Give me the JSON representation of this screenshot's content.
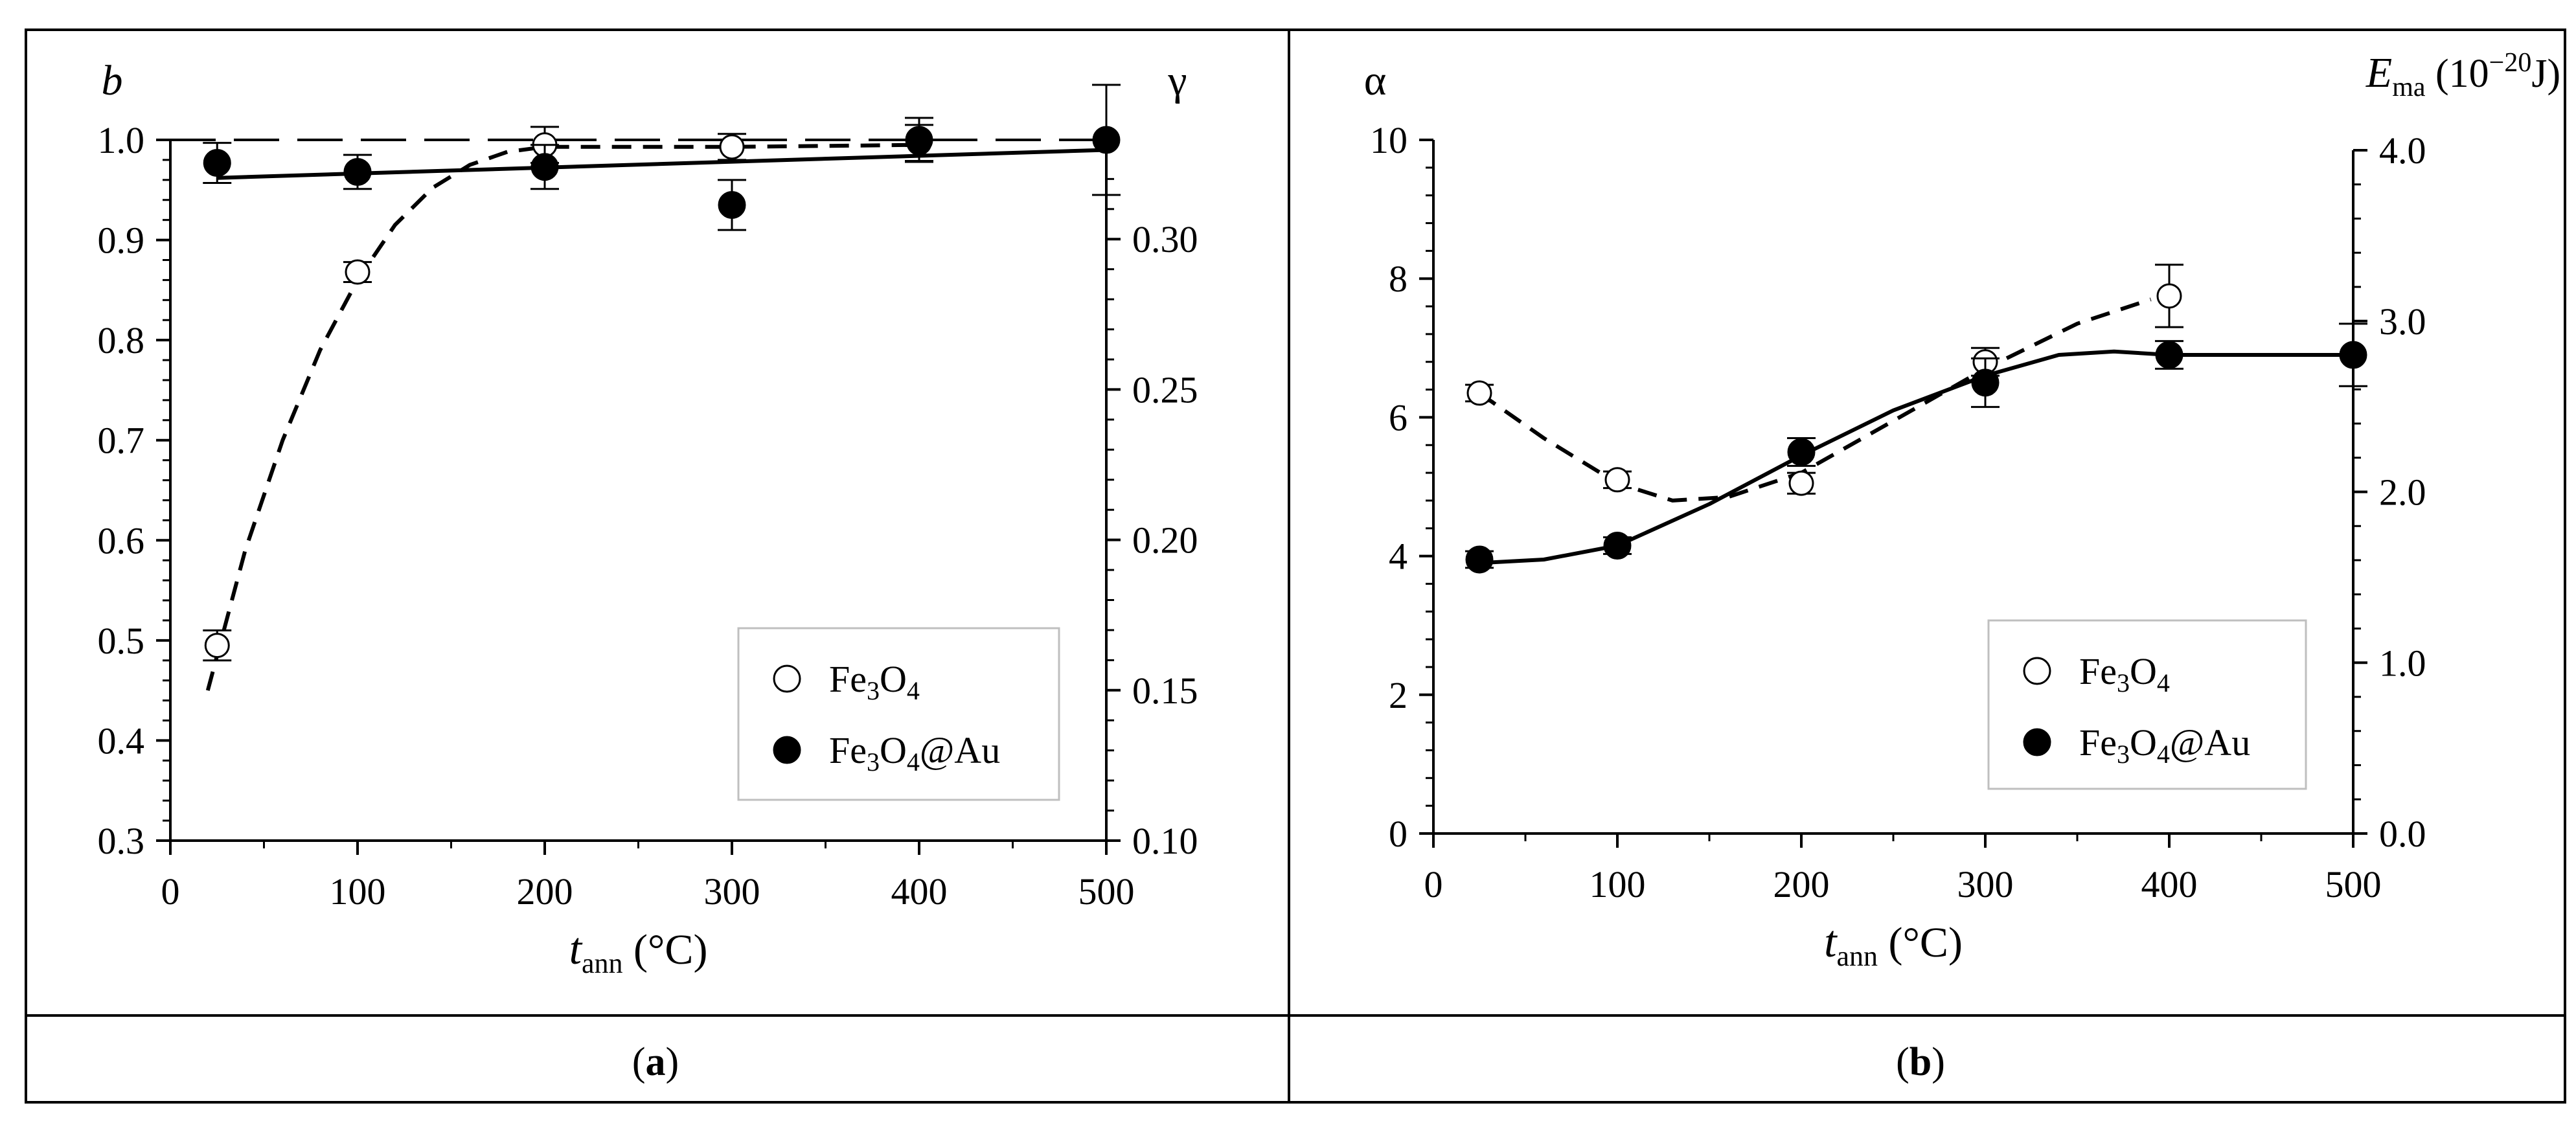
{
  "colors": {
    "ink": "#000000",
    "legend_border": "#bfbfbf",
    "background": "#ffffff"
  },
  "panel_labels": {
    "a": "a",
    "b": "b"
  },
  "chart_data": [
    {
      "id": "a",
      "type": "scatter",
      "title": "",
      "xlabel": {
        "var": "t",
        "sub": "ann",
        "unit": " (°C)"
      },
      "ylabel_left": "b",
      "ylabel_right": "γ",
      "xlim": [
        0,
        500
      ],
      "ylim_left": [
        0.3,
        1.0
      ],
      "ylim_right": [
        0.1,
        0.333
      ],
      "xticks": [
        0,
        100,
        200,
        300,
        400,
        500
      ],
      "xtick_labels": [
        "0",
        "100",
        "200",
        "300",
        "400",
        "500"
      ],
      "yticks_left": [
        0.3,
        0.4,
        0.5,
        0.6,
        0.7,
        0.8,
        0.9,
        1.0
      ],
      "ytick_labels_left": [
        "0.3",
        "0.4",
        "0.5",
        "0.6",
        "0.7",
        "0.8",
        "0.9",
        "1.0"
      ],
      "yticks_right": [
        0.1,
        0.15,
        0.2,
        0.25,
        0.3
      ],
      "ytick_labels_right": [
        "0.10",
        "0.15",
        "0.20",
        "0.25",
        "0.30"
      ],
      "reference_line": {
        "y": 1.0,
        "style": "long-dash"
      },
      "series": [
        {
          "name": "Fe3O4",
          "legend_html": "Fe<sub>3</sub>O<sub>4</sub>",
          "marker": "open-circle",
          "fit": "dashed",
          "x": [
            25,
            100,
            200,
            300,
            400
          ],
          "y": [
            0.495,
            0.868,
            0.995,
            0.993,
            0.997
          ],
          "err": [
            0.015,
            0.01,
            0.018,
            0.013,
            0.018
          ]
        },
        {
          "name": "Fe3O4@Au",
          "legend_html": "Fe<sub>3</sub>O<sub>4</sub>@Au",
          "marker": "filled-circle",
          "fit": "solid",
          "x": [
            25,
            100,
            200,
            300,
            400,
            500
          ],
          "y": [
            0.977,
            0.968,
            0.973,
            0.935,
            1.0,
            1.0
          ],
          "err": [
            0.02,
            0.017,
            0.022,
            0.025,
            0.022,
            0.055
          ]
        }
      ],
      "fit_curves": {
        "Fe3O4": {
          "x": [
            20,
            40,
            60,
            80,
            100,
            120,
            140,
            160,
            180,
            200,
            250,
            300,
            350,
            400
          ],
          "y": [
            0.45,
            0.59,
            0.7,
            0.79,
            0.86,
            0.915,
            0.952,
            0.975,
            0.988,
            0.993,
            0.993,
            0.993,
            0.994,
            0.995
          ]
        },
        "Fe3O4@Au": {
          "x": [
            25,
            500
          ],
          "y": [
            0.962,
            0.99
          ]
        }
      },
      "legend": {
        "position": "bottom-right"
      }
    },
    {
      "id": "b",
      "type": "scatter",
      "title": "",
      "xlabel": {
        "var": "t",
        "sub": "ann",
        "unit": " (°C)"
      },
      "ylabel_left": "α",
      "ylabel_right": {
        "var": "E",
        "sub": "ma",
        "unit_html": " (10<sup>−20</sup>J)"
      },
      "xlim": [
        0,
        500
      ],
      "ylim_left": [
        0,
        10
      ],
      "ylim_right": [
        0,
        4.0
      ],
      "xticks": [
        0,
        100,
        200,
        300,
        400,
        500
      ],
      "xtick_labels": [
        "0",
        "100",
        "200",
        "300",
        "400",
        "500"
      ],
      "yticks_left": [
        0,
        2,
        4,
        6,
        8,
        10
      ],
      "ytick_labels_left": [
        "0",
        "2",
        "4",
        "6",
        "8",
        "10"
      ],
      "yticks_right": [
        0.0,
        1.0,
        2.0,
        3.0,
        4.0
      ],
      "ytick_labels_right": [
        "0.0",
        "1.0",
        "2.0",
        "3.0",
        "4.0"
      ],
      "series": [
        {
          "name": "Fe3O4",
          "legend_html": "Fe<sub>3</sub>O<sub>4</sub>",
          "marker": "open-circle",
          "fit": "dashed",
          "x": [
            25,
            100,
            200,
            300,
            400
          ],
          "y": [
            6.35,
            5.1,
            5.05,
            6.8,
            7.75
          ],
          "err": [
            0.12,
            0.12,
            0.15,
            0.2,
            0.45
          ]
        },
        {
          "name": "Fe3O4@Au",
          "legend_html": "Fe<sub>3</sub>O<sub>4</sub>@Au",
          "marker": "filled-circle",
          "fit": "solid",
          "x": [
            25,
            100,
            200,
            300,
            400,
            500
          ],
          "y": [
            3.95,
            4.15,
            5.5,
            6.5,
            6.9,
            6.9
          ],
          "err": [
            0.12,
            0.12,
            0.2,
            0.35,
            0.2,
            0.45
          ]
        }
      ],
      "fit_curves": {
        "Fe3O4": {
          "x": [
            25,
            60,
            100,
            130,
            160,
            200,
            250,
            300,
            350,
            390
          ],
          "y": [
            6.35,
            5.7,
            5.05,
            4.8,
            4.85,
            5.2,
            5.95,
            6.7,
            7.35,
            7.7
          ]
        },
        "Fe3O4@Au": {
          "x": [
            25,
            60,
            100,
            150,
            200,
            250,
            300,
            340,
            370,
            400,
            450,
            500
          ],
          "y": [
            3.9,
            3.95,
            4.15,
            4.75,
            5.45,
            6.1,
            6.6,
            6.9,
            6.95,
            6.9,
            6.9,
            6.9
          ]
        }
      },
      "legend": {
        "position": "bottom-right"
      }
    }
  ]
}
